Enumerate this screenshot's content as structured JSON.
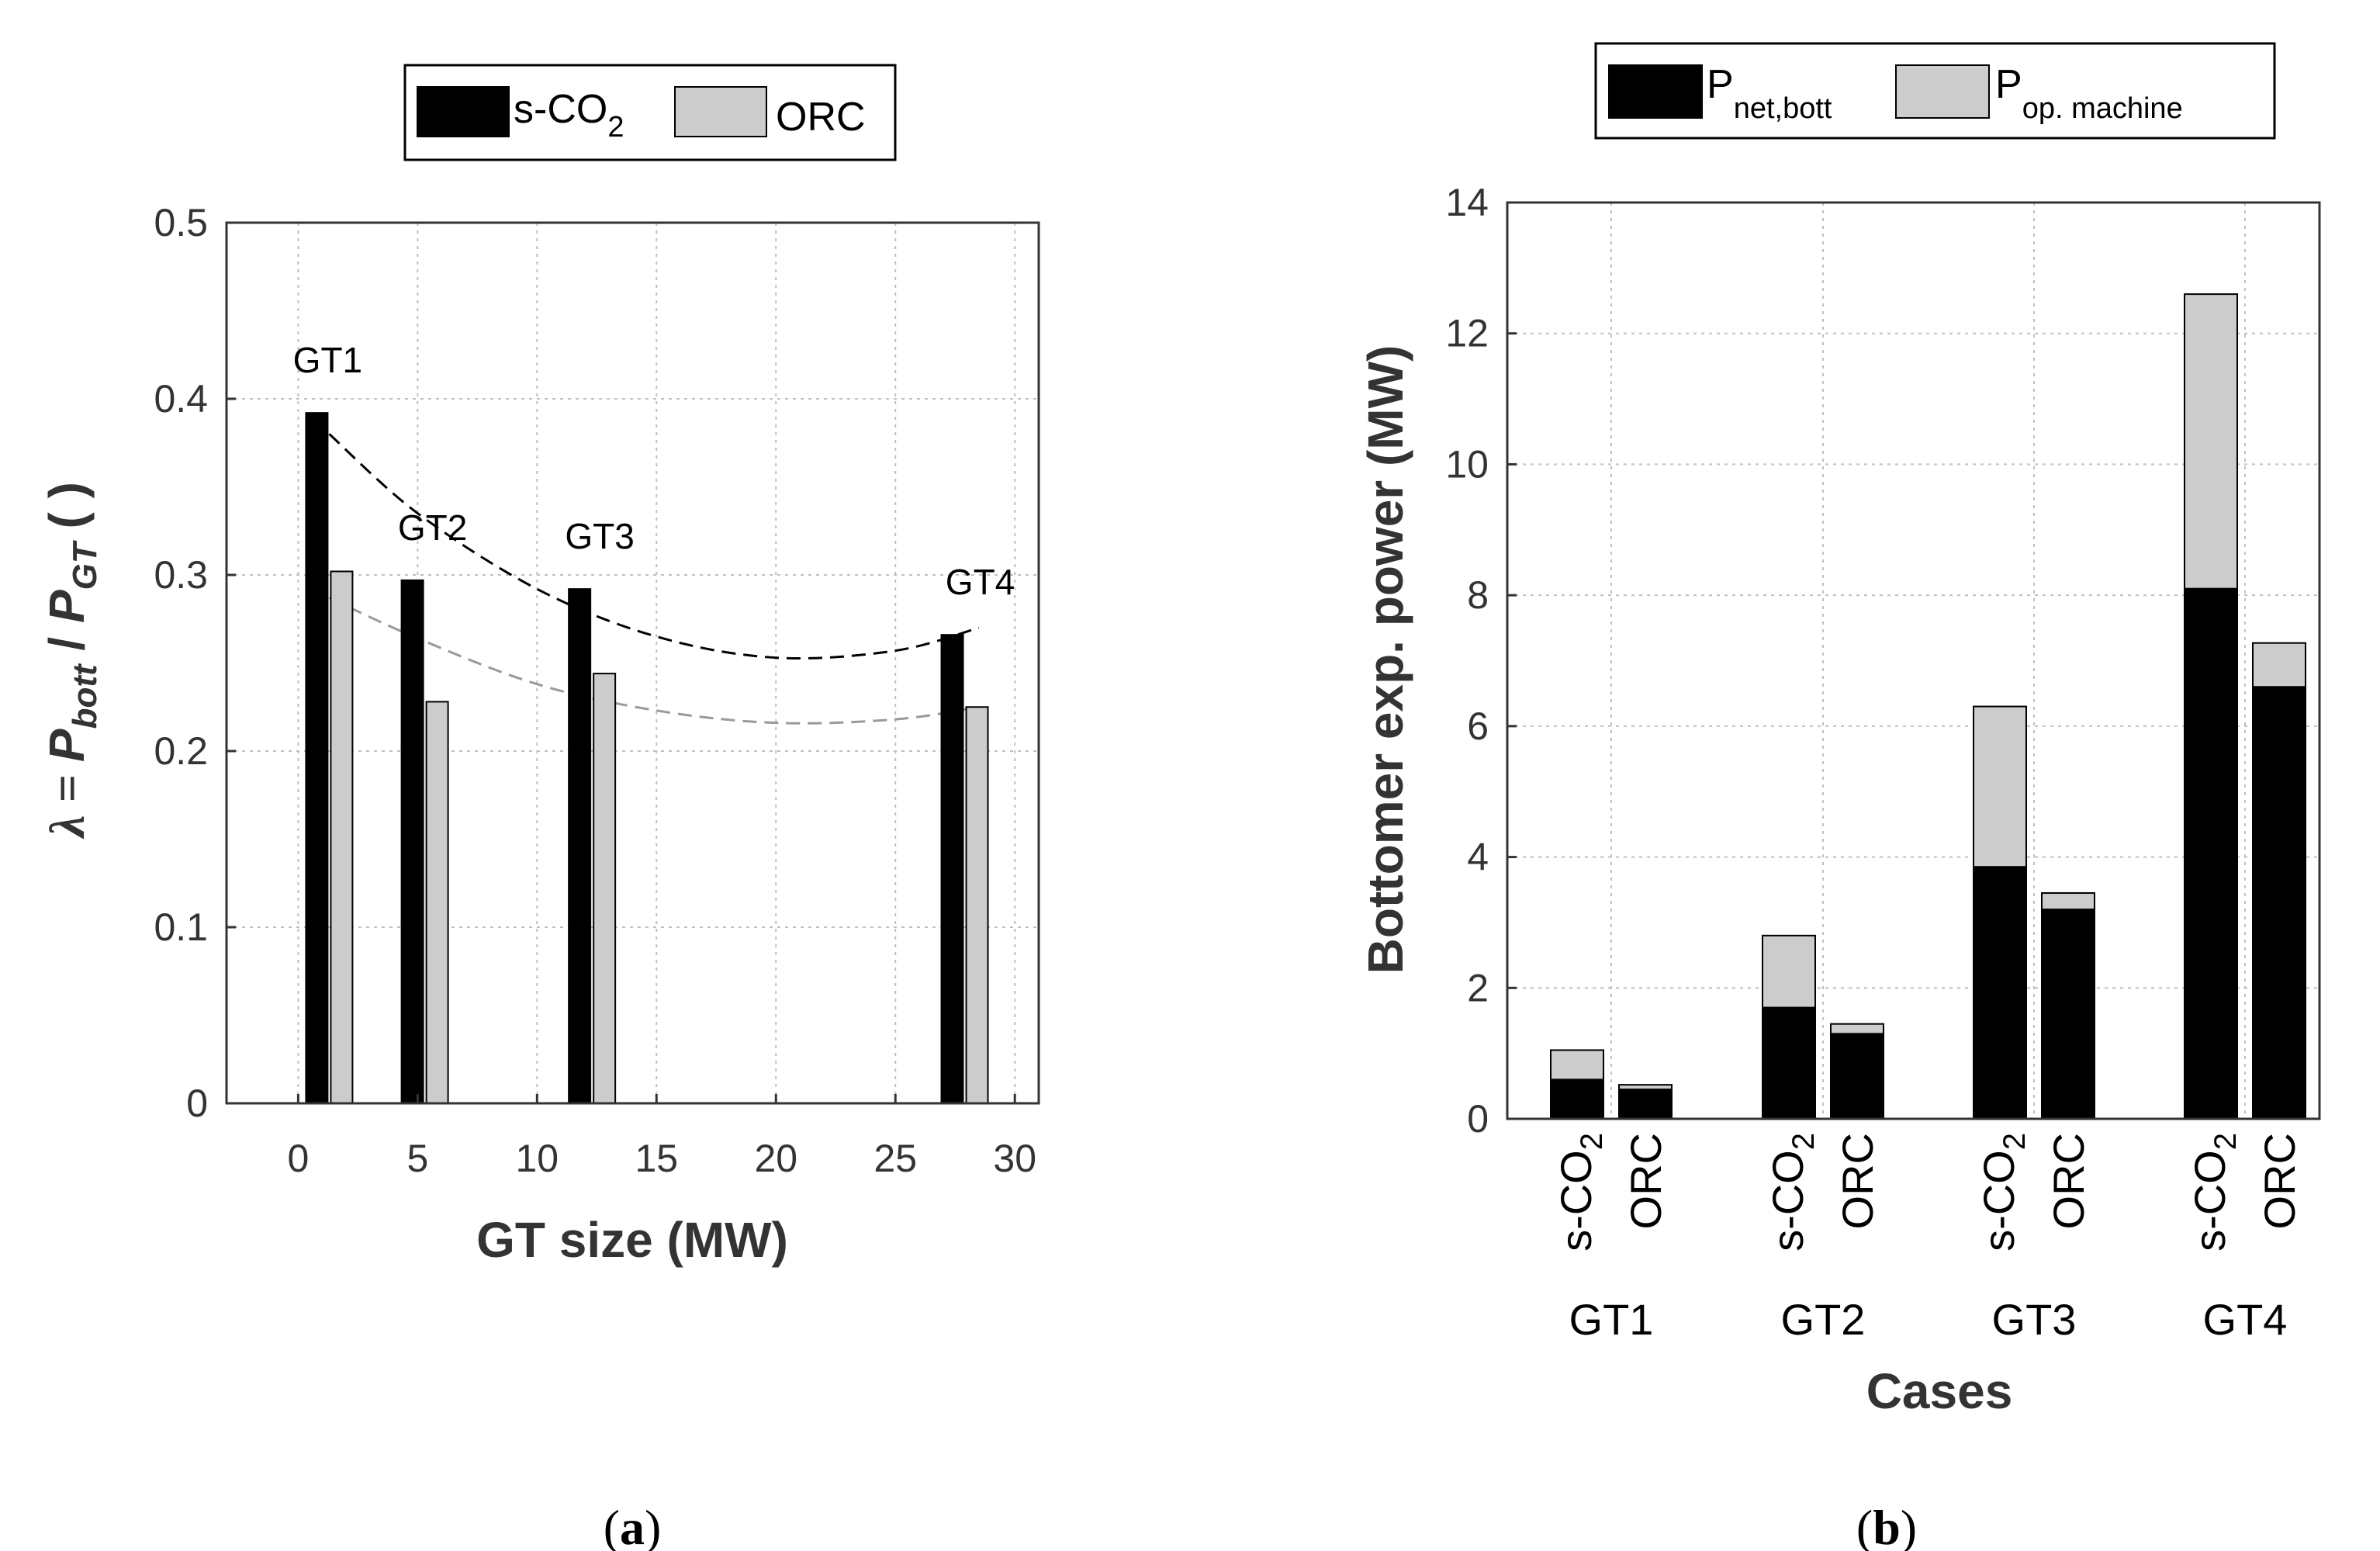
{
  "colors": {
    "scco2": "#000000",
    "orc": "#cccccc",
    "grid": "#bfbfbf",
    "trend_scco2": "#000000",
    "trend_orc": "#999999"
  },
  "chart_data": [
    {
      "type": "bar",
      "panel_label": {
        "open": "(",
        "letter": "a",
        "close": ")"
      },
      "legend": {
        "placement": "top",
        "entries": [
          {
            "main": "s-CO",
            "sub": "2"
          },
          {
            "main": "ORC",
            "sub": ""
          }
        ]
      },
      "xlabel": "GT size (MW)",
      "ylabel": {
        "lambda": "λ = ",
        "p1": "P",
        "s1": "bott",
        "sep": " / ",
        "p2": "P",
        "s2": "GT",
        "units": " ( )"
      },
      "xlim": [
        -3,
        31
      ],
      "ylim": [
        0,
        0.5
      ],
      "xticks": [
        0,
        5,
        10,
        15,
        20,
        25,
        30
      ],
      "xtick_labels": [
        "0",
        "5",
        "10",
        "15",
        "20",
        "25",
        "30"
      ],
      "yticks": [
        0,
        0.1,
        0.2,
        0.3,
        0.4,
        0.5
      ],
      "ytick_labels": [
        "0",
        "0.1",
        "0.2",
        "0.3",
        "0.4",
        "0.5"
      ],
      "grid": true,
      "groups": [
        {
          "label": "GT1",
          "x": 1.3,
          "scco2": 0.392,
          "orc": 0.302
        },
        {
          "label": "GT2",
          "x": 5.3,
          "scco2": 0.297,
          "orc": 0.228
        },
        {
          "label": "GT3",
          "x": 12.3,
          "scco2": 0.292,
          "orc": 0.244
        },
        {
          "label": "GT4",
          "x": 27.9,
          "scco2": 0.266,
          "orc": 0.225
        }
      ],
      "trend_scco2": [
        [
          1.3,
          0.38
        ],
        [
          5,
          0.335
        ],
        [
          10,
          0.292
        ],
        [
          15,
          0.265
        ],
        [
          20,
          0.253
        ],
        [
          25,
          0.257
        ],
        [
          28.5,
          0.27
        ]
      ],
      "trend_orc": [
        [
          1.3,
          0.287
        ],
        [
          5,
          0.264
        ],
        [
          10,
          0.238
        ],
        [
          15,
          0.223
        ],
        [
          20,
          0.216
        ],
        [
          25,
          0.218
        ],
        [
          28.5,
          0.225
        ]
      ]
    },
    {
      "type": "bar",
      "stacked": true,
      "panel_label": {
        "open": "(",
        "letter": "b",
        "close": ")"
      },
      "legend": {
        "placement": "top",
        "entries": [
          {
            "main": "P",
            "sub": "net,bott"
          },
          {
            "main": "P",
            "sub": "op. machine"
          }
        ]
      },
      "xlabel": "Cases",
      "ylabel": "Bottomer exp. power (MW)",
      "ylim": [
        0,
        14
      ],
      "yticks": [
        0,
        2,
        4,
        6,
        8,
        10,
        12,
        14
      ],
      "ytick_labels": [
        "0",
        "2",
        "4",
        "6",
        "8",
        "10",
        "12",
        "14"
      ],
      "grid": true,
      "groups": [
        "GT1",
        "GT2",
        "GT3",
        "GT4"
      ],
      "bar_labels": [
        {
          "main": "s-CO",
          "sub": "2"
        },
        {
          "main": "ORC",
          "sub": ""
        }
      ],
      "series": [
        {
          "name": "P net,bott",
          "scco2": [
            0.6,
            1.7,
            3.85,
            8.1
          ],
          "orc": [
            0.45,
            1.3,
            3.2,
            6.6
          ]
        },
        {
          "name": "P op. machine",
          "scco2": [
            0.45,
            1.1,
            2.45,
            4.5
          ],
          "orc": [
            0.07,
            0.15,
            0.25,
            0.67
          ]
        }
      ]
    }
  ]
}
